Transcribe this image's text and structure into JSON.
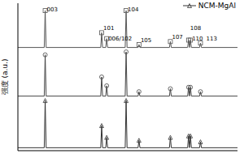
{
  "chart_data": {
    "type": "line",
    "y_label": "强度 (a.u.)",
    "tick_labels": false,
    "xlim": [
      10,
      80
    ],
    "xticks": [
      10,
      20,
      30,
      40,
      50,
      60,
      70,
      80
    ],
    "ylim": [
      0,
      100
    ],
    "yticks": [],
    "grid": false,
    "legend": "upper right",
    "x": [
      10,
      18.4,
      18.7,
      19.0,
      36.4,
      36.7,
      37.0,
      38.0,
      38.3,
      38.6,
      44.2,
      44.5,
      44.8,
      48.3,
      48.6,
      48.9,
      58.3,
      58.6,
      58.9,
      64.1,
      64.4,
      64.7,
      65.0,
      65.3,
      67.9,
      68.2,
      68.5,
      80
    ],
    "series": [
      {
        "color": "#555555",
        "marker": "square",
        "values": [
          70,
          70,
          95,
          70,
          70,
          80,
          70,
          70,
          76,
          70,
          70,
          95,
          70,
          70,
          72,
          70,
          70,
          74,
          70,
          70,
          75,
          70,
          75,
          70,
          70,
          73,
          70,
          70
        ]
      },
      {
        "color": "#444444",
        "marker": "circle",
        "values": [
          37,
          37,
          65,
          37,
          37,
          50,
          37,
          37,
          44,
          37,
          37,
          67,
          37,
          37,
          40,
          37,
          37,
          42,
          37,
          37,
          43,
          37,
          43,
          37,
          37,
          40,
          37,
          37
        ]
      },
      {
        "name": "NCM-MgAl",
        "color": "#333333",
        "marker": "triangle",
        "values": [
          2,
          2,
          34,
          2,
          2,
          17,
          2,
          2,
          9,
          2,
          2,
          34,
          2,
          2,
          7,
          2,
          2,
          9,
          2,
          2,
          10,
          2,
          10,
          2,
          2,
          6,
          2,
          2
        ]
      }
    ],
    "annotations": [
      {
        "text": "003",
        "x": 18.7,
        "y": 96
      },
      {
        "text": "101",
        "x": 36.7,
        "y": 83
      },
      {
        "text": "006/102",
        "x": 38.3,
        "y": 76
      },
      {
        "text": "104",
        "x": 44.5,
        "y": 96
      },
      {
        "text": "105",
        "x": 48.6,
        "y": 75
      },
      {
        "text": "107",
        "x": 58.6,
        "y": 77
      },
      {
        "text": "108",
        "x": 64.4,
        "y": 83
      },
      {
        "text": "110",
        "x": 65.0,
        "y": 76
      },
      {
        "text": "113",
        "x": 69.5,
        "y": 76
      }
    ]
  }
}
